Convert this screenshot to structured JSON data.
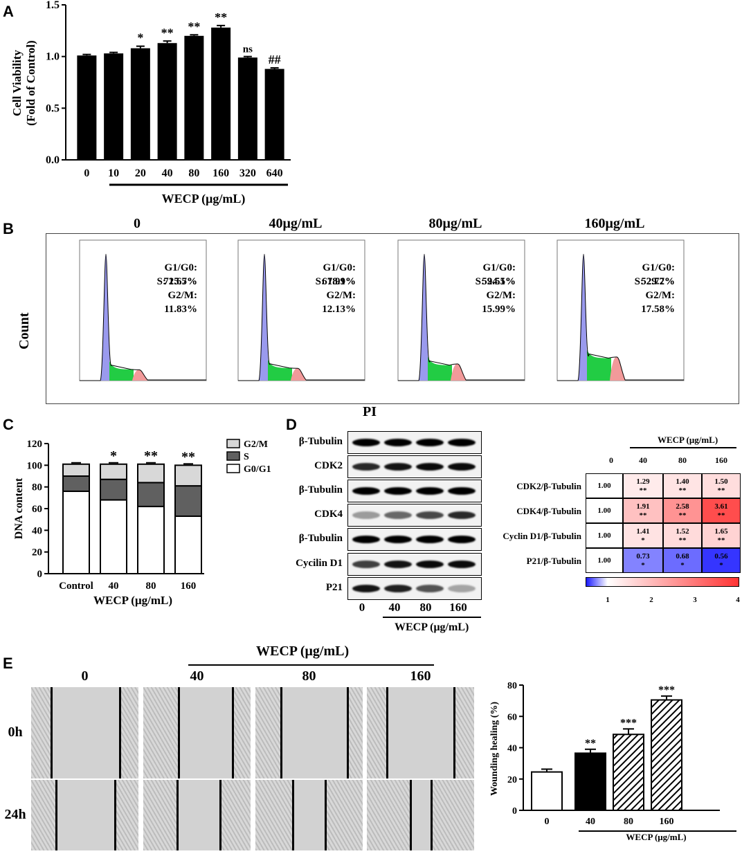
{
  "panels": {
    "a": "A",
    "b": "B",
    "c": "C",
    "d": "D",
    "e": "E"
  },
  "panel_a": {
    "ylabel_line1": "Cell Viability",
    "ylabel_line2": "(Fold of Control)",
    "xlabel": "WECP (μg/mL)",
    "yticks": [
      "0.0",
      "0.5",
      "1.0",
      "1.5"
    ]
  },
  "panel_b": {
    "ylabel": "Count",
    "xlabel": "PI",
    "plots": [
      {
        "title": "0",
        "g1": "G1/G0: 72.67%",
        "s": "S: 15.5%",
        "g2": "G2/M: 11.83%",
        "g2h": 0.22,
        "sh": 0.08
      },
      {
        "title": "40μg/mL",
        "g1": "G1/G0: 67.91%",
        "s": "S: 18.9%",
        "g2": "G2/M: 12.13%",
        "g2h": 0.25,
        "sh": 0.09
      },
      {
        "title": "80μg/mL",
        "g1": "G1/G0: 59.51%",
        "s": "S: 24.5%",
        "g2": "G2/M: 15.99%",
        "g2h": 0.34,
        "sh": 0.11
      },
      {
        "title": "160μg/mL",
        "g1": "G1/G0: 52.72%",
        "s": "S: 29.7%",
        "g2": "G2/M: 17.58%",
        "g2h": 0.48,
        "sh": 0.16
      }
    ]
  },
  "panel_c": {
    "ylabel": "DNA content",
    "xlabel": "WECP (μg/mL)",
    "legend": [
      "G2/M",
      "S",
      "G0/G1"
    ],
    "yticks": [
      "0",
      "20",
      "40",
      "60",
      "80",
      "100",
      "120"
    ]
  },
  "panel_d": {
    "blot_labels": [
      "β-Tubulin",
      "CDK2",
      "β-Tubulin",
      "CDK4",
      "β-Tubulin",
      "Cycilin D1",
      "P21"
    ],
    "lanes": [
      "0",
      "40",
      "80",
      "160"
    ],
    "xlabel": "WECP (μg/mL)",
    "heatmap": {
      "header": "WECP (μg/mL)",
      "cols": [
        "0",
        "40",
        "80",
        "160"
      ],
      "rows": [
        {
          "label": "CDK2/β-Tubulin",
          "values": [
            "1.00",
            "1.29",
            "1.40",
            "1.50"
          ],
          "sig": [
            "",
            "**",
            "**",
            "**"
          ],
          "v": [
            1.0,
            1.29,
            1.4,
            1.5
          ]
        },
        {
          "label": "CDK4/β-Tubulin",
          "values": [
            "1.00",
            "1.91",
            "2.58",
            "3.61"
          ],
          "sig": [
            "",
            "**",
            "**",
            "**"
          ],
          "v": [
            1.0,
            1.91,
            2.58,
            3.61
          ]
        },
        {
          "label": "Cyclin D1/β-Tubulin",
          "values": [
            "1.00",
            "1.41",
            "1.52",
            "1.65"
          ],
          "sig": [
            "",
            "*",
            "**",
            "**"
          ],
          "v": [
            1.0,
            1.41,
            1.52,
            1.65
          ]
        },
        {
          "label": "P21/β-Tubulin",
          "values": [
            "1.00",
            "0.73",
            "0.68",
            "0.56"
          ],
          "sig": [
            "",
            "*",
            "*",
            "*"
          ],
          "v": [
            1.0,
            0.73,
            0.68,
            0.56
          ]
        }
      ],
      "scale_ticks": [
        "1",
        "2",
        "3",
        "4"
      ]
    }
  },
  "panel_e": {
    "header": "WECP (μg/mL)",
    "cols": [
      "0",
      "40",
      "80",
      "160"
    ],
    "rows": [
      "0h",
      "24h"
    ],
    "ylabel": "Wounding healing (%)",
    "xlabel": "WECP (μg/mL)",
    "yticks": [
      "0",
      "20",
      "40",
      "60",
      "80"
    ]
  },
  "chart_data": [
    {
      "type": "bar",
      "title": "",
      "xlabel": "WECP (μg/mL)",
      "ylabel": "Cell Viability (Fold of Control)",
      "categories": [
        "0",
        "10",
        "20",
        "40",
        "80",
        "160",
        "320",
        "640"
      ],
      "values": [
        1.01,
        1.03,
        1.08,
        1.13,
        1.2,
        1.28,
        0.99,
        0.88
      ],
      "errors": [
        0.01,
        0.01,
        0.02,
        0.02,
        0.01,
        0.02,
        0.01,
        0.01
      ],
      "annotations": [
        "",
        "",
        "*",
        "**",
        "**",
        "**",
        "ns",
        "##"
      ],
      "ylim": [
        0,
        1.5
      ]
    },
    {
      "type": "bar",
      "stacked": true,
      "xlabel": "WECP (μg/mL)",
      "ylabel": "DNA content",
      "categories": [
        "Control",
        "40",
        "80",
        "160"
      ],
      "series": [
        {
          "name": "G0/G1",
          "values": [
            76,
            68,
            62,
            53
          ]
        },
        {
          "name": "S",
          "values": [
            14,
            19,
            22,
            28
          ]
        },
        {
          "name": "G2/M",
          "values": [
            11,
            14,
            17,
            19
          ]
        }
      ],
      "annotations": [
        "",
        "*",
        "**",
        "**"
      ],
      "ylim": [
        0,
        120
      ]
    },
    {
      "type": "heatmap",
      "xlabel": "WECP (μg/mL)",
      "columns": [
        "0",
        "40",
        "80",
        "160"
      ],
      "rows": [
        "CDK2/β-Tubulin",
        "CDK4/β-Tubulin",
        "Cyclin D1/β-Tubulin",
        "P21/β-Tubulin"
      ],
      "values": [
        [
          1.0,
          1.29,
          1.4,
          1.5
        ],
        [
          1.0,
          1.91,
          2.58,
          3.61
        ],
        [
          1.0,
          1.41,
          1.52,
          1.65
        ],
        [
          1.0,
          0.73,
          0.68,
          0.56
        ]
      ],
      "range": [
        0.5,
        4
      ]
    },
    {
      "type": "bar",
      "xlabel": "WECP (μg/mL)",
      "ylabel": "Wounding healing (%)",
      "categories": [
        "0",
        "40",
        "80",
        "160"
      ],
      "values": [
        24.5,
        36.5,
        48.5,
        70.5
      ],
      "errors": [
        1.8,
        2.5,
        3.5,
        2.5
      ],
      "annotations": [
        "",
        "**",
        "***",
        "***"
      ],
      "ylim": [
        0,
        80
      ]
    }
  ]
}
